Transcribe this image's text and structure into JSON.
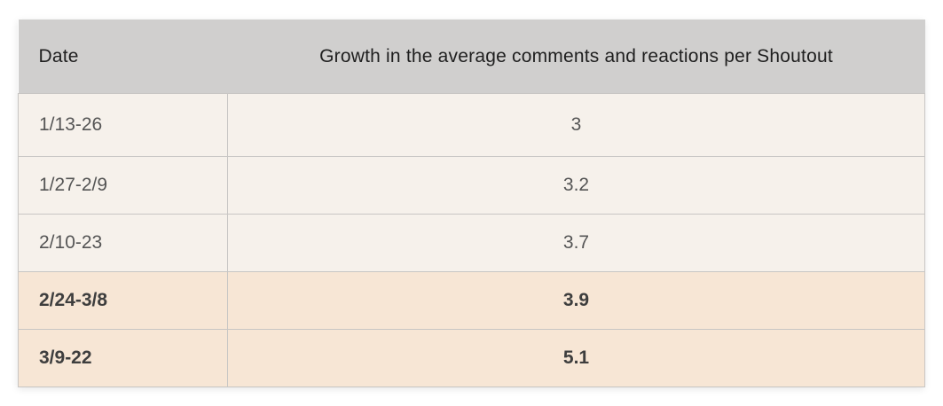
{
  "table": {
    "headers": {
      "date": "Date",
      "growth": "Growth in the average comments and reactions per Shoutout"
    },
    "rows": [
      {
        "date": "1/13-26",
        "value": "3",
        "highlight": false
      },
      {
        "date": "1/27-2/9",
        "value": "3.2",
        "highlight": false
      },
      {
        "date": "2/10-23",
        "value": "3.7",
        "highlight": false
      },
      {
        "date": "2/24-3/8",
        "value": "3.9",
        "highlight": true
      },
      {
        "date": "3/9-22",
        "value": "5.1",
        "highlight": true
      }
    ]
  },
  "colors": {
    "header_bg": "#d0cfce",
    "row_bg": "#f6f1eb",
    "highlight_bg": "#f7e6d5",
    "border": "#c8c6c4"
  }
}
